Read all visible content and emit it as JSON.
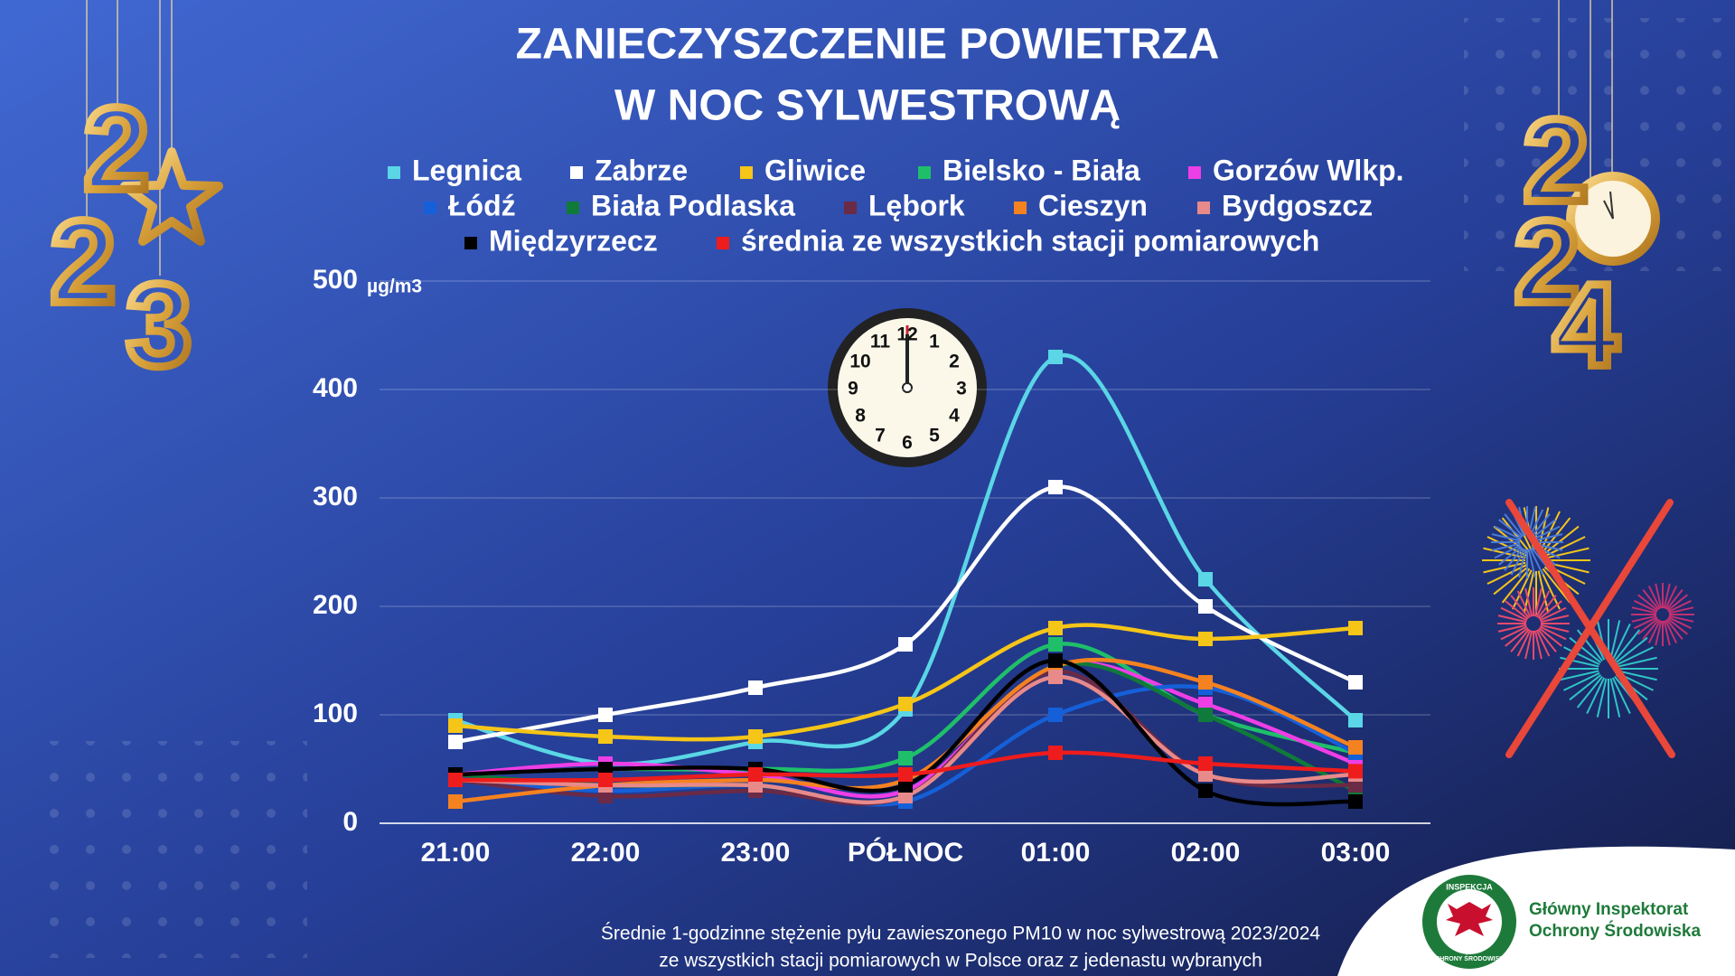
{
  "chart_data": {
    "type": "line",
    "title": [
      "ZANIECZYSZCZENIE POWIETRZA",
      "W NOC SYLWESTROWĄ"
    ],
    "y_unit": "µg/m3",
    "categories": [
      "21:00",
      "22:00",
      "23:00",
      "PÓŁNOC",
      "01:00",
      "02:00",
      "03:00"
    ],
    "ylim": [
      0,
      500
    ],
    "yticks": [
      0,
      100,
      200,
      300,
      400,
      500
    ],
    "grid": true,
    "series": [
      {
        "name": "Legnica",
        "color": "#5ad6e6",
        "values": [
          95,
          55,
          75,
          105,
          430,
          225,
          95
        ]
      },
      {
        "name": "Zabrze",
        "color": "#ffffff",
        "values": [
          75,
          100,
          125,
          165,
          310,
          200,
          130
        ]
      },
      {
        "name": "Gliwice",
        "color": "#f5c518",
        "values": [
          90,
          80,
          80,
          110,
          180,
          170,
          180
        ]
      },
      {
        "name": "Bielsko - Biała",
        "color": "#1fbf6a",
        "values": [
          45,
          50,
          50,
          60,
          165,
          100,
          65
        ]
      },
      {
        "name": "Gorzów Wlkp.",
        "color": "#ee3ee6",
        "values": [
          45,
          55,
          45,
          30,
          145,
          110,
          55
        ]
      },
      {
        "name": "Łódź",
        "color": "#1560d8",
        "values": [
          40,
          30,
          35,
          20,
          100,
          125,
          65
        ]
      },
      {
        "name": "Biała Podlaska",
        "color": "#0f7a3a",
        "values": [
          45,
          35,
          35,
          25,
          145,
          100,
          30
        ]
      },
      {
        "name": "Lębork",
        "color": "#6b2a45",
        "values": [
          40,
          25,
          30,
          25,
          140,
          45,
          35
        ]
      },
      {
        "name": "Cieszyn",
        "color": "#f58220",
        "values": [
          20,
          35,
          40,
          40,
          145,
          130,
          70
        ]
      },
      {
        "name": "Bydgoszcz",
        "color": "#e88a8a",
        "values": [
          40,
          35,
          35,
          25,
          135,
          45,
          45
        ]
      },
      {
        "name": "Międzyrzecz",
        "color": "#000000",
        "values": [
          45,
          50,
          50,
          35,
          150,
          30,
          20
        ]
      },
      {
        "name": "średnia ze wszystkich stacji pomiarowych",
        "color": "#ee1c1c",
        "values": [
          40,
          40,
          45,
          45,
          65,
          55,
          48
        ]
      }
    ],
    "footnote": [
      "Średnie 1-godzinne stężenie pyłu zawieszonego PM10 w noc sylwestrową 2023/2024",
      "ze wszystkich stacji pomiarowych w Polsce oraz z jedenastu wybranych"
    ]
  },
  "logo": {
    "name": [
      "Główny Inspektorat",
      "Ochrony Środowiska"
    ],
    "ring_top": "INSPEKCJA",
    "ring_bottom": "OCHRONY ŚRODOWISKA"
  },
  "decor": {
    "left_digits": [
      "2",
      "2",
      "3"
    ],
    "right_digits": [
      "2",
      "2",
      "4"
    ],
    "clock_numbers": [
      12,
      1,
      2,
      3,
      4,
      5,
      6,
      7,
      8,
      9,
      10,
      11
    ]
  }
}
